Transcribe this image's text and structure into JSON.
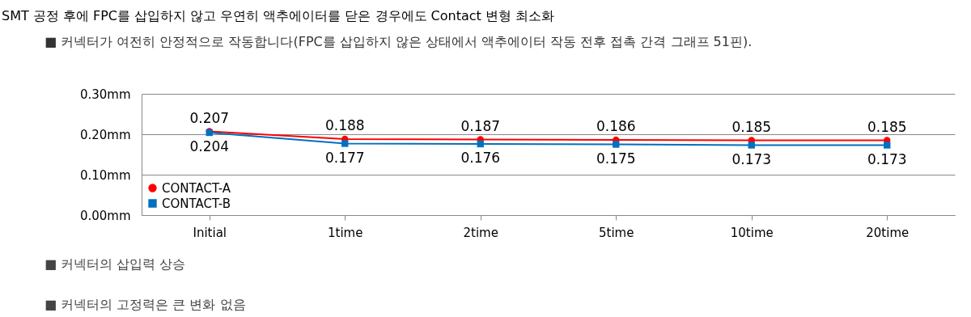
{
  "chart_data": {
    "type": "line",
    "title": "SMT 공정 후에 FPC를 삽입하지 않고 우연히 액추에이터를 닫은 경우에도 Contact 변형 최소화",
    "subtitle": "■  커넥터가 여전히 안정적으로 작동합니다(FPC를 삽입하지 않은 상태에서 액추에이터 작동 전후 접촉 간격 그래프 51핀).",
    "annotations": [
      "■  커넥터의 삽입력 상승",
      "■  커넥터의 고정력은 큰 변화 없음"
    ],
    "categories": [
      "Initial",
      "1time",
      "2time",
      "5time",
      "10time",
      "20time"
    ],
    "series": [
      {
        "name": "CONTACT-A",
        "color": "#ff0000",
        "marker": "circle",
        "values": [
          0.207,
          0.188,
          0.187,
          0.186,
          0.185,
          0.185
        ]
      },
      {
        "name": "CONTACT-B",
        "color": "#0070c0",
        "marker": "square",
        "values": [
          0.204,
          0.177,
          0.176,
          0.175,
          0.173,
          0.173
        ]
      }
    ],
    "ylim": [
      0,
      0.3
    ],
    "yticks": [
      {
        "value": 0,
        "label": "0.00mm"
      },
      {
        "value": 0.1,
        "label": "0.10mm"
      },
      {
        "value": 0.2,
        "label": "0.20mm"
      },
      {
        "value": 0.3,
        "label": "0.30mm"
      }
    ],
    "grid": "y",
    "legend": "bottom left",
    "data_labels": true
  }
}
